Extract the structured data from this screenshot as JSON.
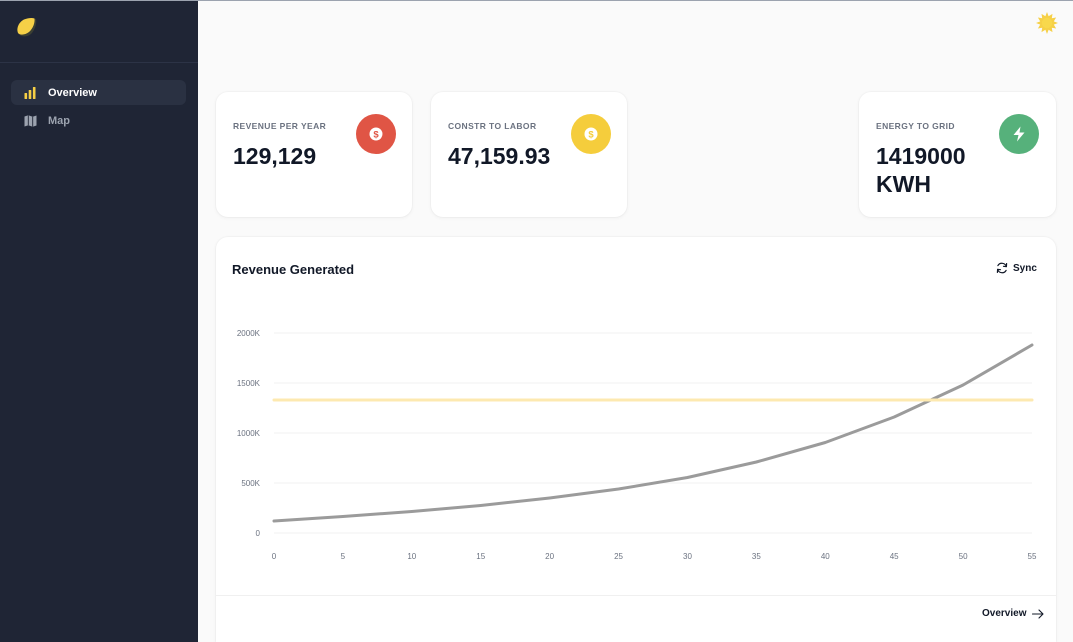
{
  "sidebar": {
    "logo": "lemon-logo-icon",
    "items": [
      {
        "label": "Overview",
        "icon": "bar-chart-icon",
        "active": true
      },
      {
        "label": "Map",
        "icon": "map-icon",
        "active": false
      }
    ]
  },
  "header": {
    "theme_icon": "sun-icon"
  },
  "stats": [
    {
      "label": "REVENUE PER YEAR",
      "value": "129,129",
      "icon": "dollar-icon",
      "color": "#e05545"
    },
    {
      "label": "CONSTR TO LABOR",
      "value": "47,159.93",
      "icon": "dollar-icon",
      "color": "#f5cd3c"
    },
    {
      "label": "ENERGY TO GRID",
      "value_line1": "1419000",
      "value_line2": "KWH",
      "icon": "lightning-icon",
      "color": "#56b17b"
    }
  ],
  "chart_panel": {
    "title": "Revenue Generated",
    "sync_label": "Sync",
    "footer_link": "Overview"
  },
  "chart_data": {
    "type": "line",
    "x": [
      0,
      5,
      10,
      15,
      20,
      25,
      30,
      35,
      40,
      45,
      50,
      55
    ],
    "series": [
      {
        "values": [
          120,
          165,
          215,
          275,
          350,
          440,
          555,
          710,
          905,
          1160,
          1480,
          1880
        ],
        "color": "#9b9b9b"
      },
      {
        "values": [
          1330,
          1330,
          1330,
          1330,
          1330,
          1330,
          1330,
          1330,
          1330,
          1330,
          1330,
          1330
        ],
        "color": "#fde9b0"
      }
    ],
    "y_ticks": [
      "0",
      "500K",
      "1000K",
      "1500K",
      "2000K"
    ],
    "x_ticks": [
      "0",
      "5",
      "10",
      "15",
      "20",
      "25",
      "30",
      "35",
      "40",
      "45",
      "50",
      "55"
    ],
    "xlim": [
      0,
      55
    ],
    "ylim": [
      0,
      2000
    ],
    "grid": true
  }
}
